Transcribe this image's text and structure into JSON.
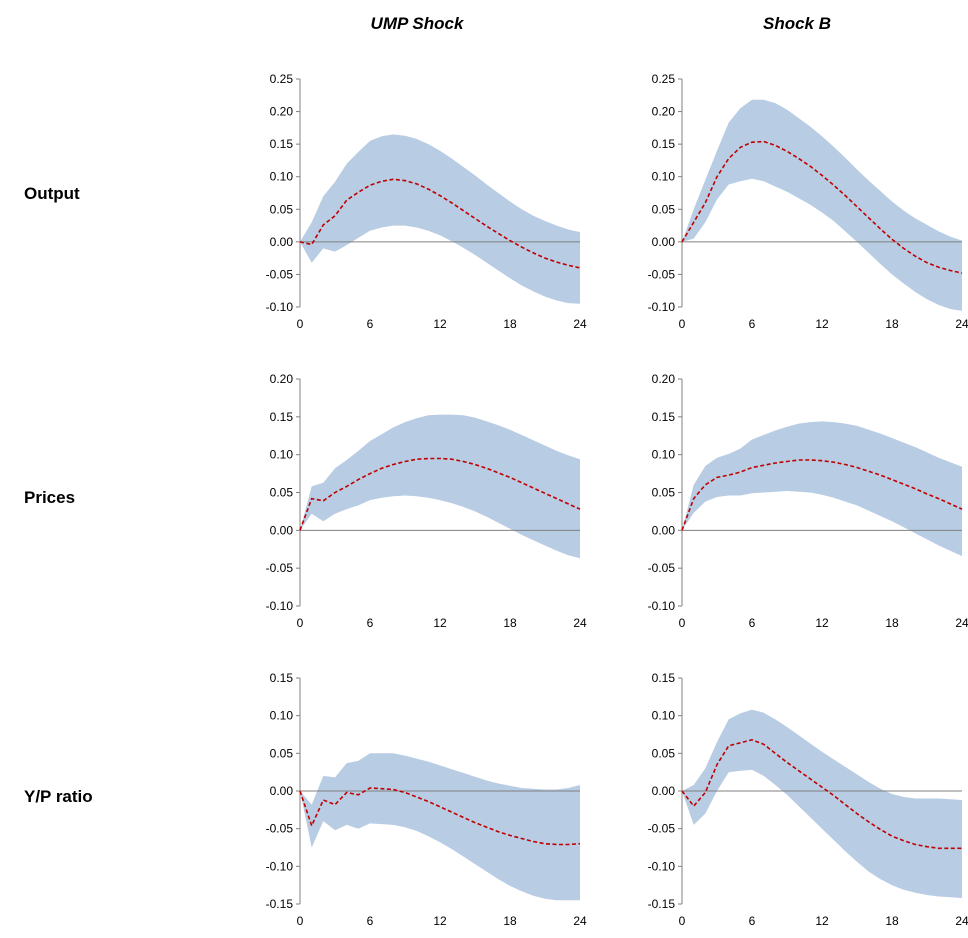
{
  "columns": [
    "UMP Shock",
    "Shock B"
  ],
  "rows": [
    "Output",
    "Prices",
    "Y/P ratio"
  ],
  "colors": {
    "band": "#b8cce4",
    "median": "#c00000",
    "axis": "#808080"
  },
  "chart_data": [
    {
      "type": "area",
      "row": "Output",
      "column": "UMP Shock",
      "ylim": [
        -0.1,
        0.25
      ],
      "yticks": [
        -0.1,
        -0.05,
        0.0,
        0.05,
        0.1,
        0.15,
        0.2,
        0.25
      ],
      "xlim": [
        0,
        24
      ],
      "xticks": [
        0,
        6,
        12,
        18,
        24
      ],
      "x": [
        0,
        1,
        2,
        3,
        4,
        5,
        6,
        7,
        8,
        9,
        10,
        11,
        12,
        13,
        14,
        15,
        16,
        17,
        18,
        19,
        20,
        21,
        22,
        23,
        24
      ],
      "series": [
        {
          "role": "upper",
          "values": [
            0.0,
            0.03,
            0.07,
            0.092,
            0.12,
            0.138,
            0.155,
            0.162,
            0.165,
            0.163,
            0.158,
            0.15,
            0.14,
            0.128,
            0.115,
            0.102,
            0.088,
            0.075,
            0.062,
            0.05,
            0.04,
            0.032,
            0.025,
            0.019,
            0.015
          ]
        },
        {
          "role": "median",
          "values": [
            0.0,
            -0.004,
            0.026,
            0.04,
            0.064,
            0.076,
            0.087,
            0.093,
            0.096,
            0.094,
            0.089,
            0.081,
            0.071,
            0.06,
            0.048,
            0.036,
            0.024,
            0.013,
            0.002,
            -0.008,
            -0.017,
            -0.025,
            -0.031,
            -0.036,
            -0.04
          ]
        },
        {
          "role": "lower",
          "values": [
            0.0,
            -0.032,
            -0.01,
            -0.015,
            -0.005,
            0.006,
            0.017,
            0.022,
            0.025,
            0.025,
            0.022,
            0.017,
            0.01,
            0.001,
            -0.009,
            -0.02,
            -0.032,
            -0.044,
            -0.056,
            -0.067,
            -0.076,
            -0.084,
            -0.09,
            -0.094,
            -0.095
          ]
        }
      ]
    },
    {
      "type": "area",
      "row": "Output",
      "column": "Shock B",
      "ylim": [
        -0.1,
        0.25
      ],
      "yticks": [
        -0.1,
        -0.05,
        0.0,
        0.05,
        0.1,
        0.15,
        0.2,
        0.25
      ],
      "xlim": [
        0,
        24
      ],
      "xticks": [
        0,
        6,
        12,
        18,
        24
      ],
      "x": [
        0,
        1,
        2,
        3,
        4,
        5,
        6,
        7,
        8,
        9,
        10,
        11,
        12,
        13,
        14,
        15,
        16,
        17,
        18,
        19,
        20,
        21,
        22,
        23,
        24
      ],
      "series": [
        {
          "role": "upper",
          "values": [
            0.0,
            0.05,
            0.095,
            0.14,
            0.183,
            0.205,
            0.218,
            0.218,
            0.213,
            0.203,
            0.19,
            0.177,
            0.162,
            0.146,
            0.129,
            0.111,
            0.094,
            0.078,
            0.062,
            0.048,
            0.036,
            0.026,
            0.016,
            0.008,
            0.002
          ]
        },
        {
          "role": "median",
          "values": [
            0.0,
            0.03,
            0.06,
            0.1,
            0.128,
            0.145,
            0.153,
            0.154,
            0.148,
            0.139,
            0.128,
            0.116,
            0.102,
            0.087,
            0.071,
            0.054,
            0.037,
            0.02,
            0.004,
            -0.01,
            -0.022,
            -0.032,
            -0.039,
            -0.044,
            -0.048
          ]
        },
        {
          "role": "lower",
          "values": [
            0.0,
            0.005,
            0.03,
            0.065,
            0.088,
            0.093,
            0.097,
            0.093,
            0.085,
            0.077,
            0.067,
            0.057,
            0.045,
            0.032,
            0.016,
            0.0,
            -0.017,
            -0.034,
            -0.05,
            -0.064,
            -0.077,
            -0.088,
            -0.097,
            -0.103,
            -0.106
          ]
        }
      ]
    },
    {
      "type": "area",
      "row": "Prices",
      "column": "UMP Shock",
      "ylim": [
        -0.1,
        0.2
      ],
      "yticks": [
        -0.1,
        -0.05,
        0.0,
        0.05,
        0.1,
        0.15,
        0.2
      ],
      "xlim": [
        0,
        24
      ],
      "xticks": [
        0,
        6,
        12,
        18,
        24
      ],
      "x": [
        0,
        1,
        2,
        3,
        4,
        5,
        6,
        7,
        8,
        9,
        10,
        11,
        12,
        13,
        14,
        15,
        16,
        17,
        18,
        19,
        20,
        21,
        22,
        23,
        24
      ],
      "series": [
        {
          "role": "upper",
          "values": [
            0.0,
            0.058,
            0.063,
            0.082,
            0.093,
            0.105,
            0.118,
            0.127,
            0.136,
            0.143,
            0.148,
            0.152,
            0.153,
            0.153,
            0.152,
            0.149,
            0.144,
            0.139,
            0.133,
            0.126,
            0.119,
            0.112,
            0.105,
            0.099,
            0.094
          ]
        },
        {
          "role": "median",
          "values": [
            0.0,
            0.042,
            0.039,
            0.05,
            0.058,
            0.067,
            0.075,
            0.082,
            0.087,
            0.091,
            0.094,
            0.095,
            0.095,
            0.094,
            0.091,
            0.087,
            0.082,
            0.076,
            0.07,
            0.063,
            0.056,
            0.049,
            0.042,
            0.035,
            0.028
          ]
        },
        {
          "role": "lower",
          "values": [
            0.0,
            0.022,
            0.012,
            0.022,
            0.028,
            0.033,
            0.04,
            0.043,
            0.045,
            0.046,
            0.045,
            0.043,
            0.04,
            0.036,
            0.031,
            0.025,
            0.018,
            0.01,
            0.002,
            -0.006,
            -0.013,
            -0.02,
            -0.027,
            -0.033,
            -0.037
          ]
        }
      ]
    },
    {
      "type": "area",
      "row": "Prices",
      "column": "Shock B",
      "ylim": [
        -0.1,
        0.2
      ],
      "yticks": [
        -0.1,
        -0.05,
        0.0,
        0.05,
        0.1,
        0.15,
        0.2
      ],
      "xlim": [
        0,
        24
      ],
      "xticks": [
        0,
        6,
        12,
        18,
        24
      ],
      "x": [
        0,
        1,
        2,
        3,
        4,
        5,
        6,
        7,
        8,
        9,
        10,
        11,
        12,
        13,
        14,
        15,
        16,
        17,
        18,
        19,
        20,
        21,
        22,
        23,
        24
      ],
      "series": [
        {
          "role": "upper",
          "values": [
            0.0,
            0.06,
            0.085,
            0.096,
            0.101,
            0.108,
            0.12,
            0.126,
            0.132,
            0.137,
            0.141,
            0.143,
            0.144,
            0.143,
            0.141,
            0.138,
            0.133,
            0.128,
            0.122,
            0.116,
            0.11,
            0.103,
            0.096,
            0.09,
            0.084
          ]
        },
        {
          "role": "median",
          "values": [
            0.0,
            0.042,
            0.06,
            0.07,
            0.073,
            0.077,
            0.083,
            0.086,
            0.089,
            0.091,
            0.093,
            0.093,
            0.092,
            0.09,
            0.087,
            0.083,
            0.078,
            0.073,
            0.067,
            0.061,
            0.055,
            0.048,
            0.042,
            0.035,
            0.028
          ]
        },
        {
          "role": "lower",
          "values": [
            0.0,
            0.023,
            0.038,
            0.044,
            0.046,
            0.046,
            0.049,
            0.05,
            0.051,
            0.052,
            0.051,
            0.05,
            0.047,
            0.043,
            0.038,
            0.033,
            0.026,
            0.019,
            0.012,
            0.004,
            -0.004,
            -0.012,
            -0.02,
            -0.027,
            -0.034
          ]
        }
      ]
    },
    {
      "type": "area",
      "row": "Y/P ratio",
      "column": "UMP Shock",
      "ylim": [
        -0.15,
        0.15
      ],
      "yticks": [
        -0.15,
        -0.1,
        -0.05,
        0.0,
        0.05,
        0.1,
        0.15
      ],
      "xlim": [
        0,
        24
      ],
      "xticks": [
        0,
        6,
        12,
        18,
        24
      ],
      "x": [
        0,
        1,
        2,
        3,
        4,
        5,
        6,
        7,
        8,
        9,
        10,
        11,
        12,
        13,
        14,
        15,
        16,
        17,
        18,
        19,
        20,
        21,
        22,
        23,
        24
      ],
      "series": [
        {
          "role": "upper",
          "values": [
            0.0,
            -0.018,
            0.02,
            0.018,
            0.037,
            0.04,
            0.05,
            0.05,
            0.05,
            0.047,
            0.043,
            0.039,
            0.034,
            0.029,
            0.024,
            0.019,
            0.014,
            0.01,
            0.007,
            0.004,
            0.003,
            0.002,
            0.002,
            0.004,
            0.008
          ]
        },
        {
          "role": "median",
          "values": [
            0.0,
            -0.046,
            -0.012,
            -0.018,
            -0.002,
            -0.005,
            0.004,
            0.003,
            0.002,
            -0.002,
            -0.008,
            -0.014,
            -0.021,
            -0.028,
            -0.035,
            -0.042,
            -0.048,
            -0.054,
            -0.059,
            -0.063,
            -0.067,
            -0.07,
            -0.071,
            -0.071,
            -0.07
          ]
        },
        {
          "role": "lower",
          "values": [
            0.0,
            -0.075,
            -0.04,
            -0.052,
            -0.045,
            -0.05,
            -0.043,
            -0.044,
            -0.045,
            -0.048,
            -0.053,
            -0.06,
            -0.068,
            -0.077,
            -0.087,
            -0.097,
            -0.107,
            -0.117,
            -0.126,
            -0.133,
            -0.139,
            -0.143,
            -0.145,
            -0.145,
            -0.145
          ]
        }
      ]
    },
    {
      "type": "area",
      "row": "Y/P ratio",
      "column": "Shock B",
      "ylim": [
        -0.15,
        0.15
      ],
      "yticks": [
        -0.15,
        -0.1,
        -0.05,
        0.0,
        0.05,
        0.1,
        0.15
      ],
      "xlim": [
        0,
        24
      ],
      "xticks": [
        0,
        6,
        12,
        18,
        24
      ],
      "x": [
        0,
        1,
        2,
        3,
        4,
        5,
        6,
        7,
        8,
        9,
        10,
        11,
        12,
        13,
        14,
        15,
        16,
        17,
        18,
        19,
        20,
        21,
        22,
        23,
        24
      ],
      "series": [
        {
          "role": "upper",
          "values": [
            0.0,
            0.008,
            0.03,
            0.065,
            0.095,
            0.103,
            0.108,
            0.104,
            0.095,
            0.085,
            0.074,
            0.063,
            0.052,
            0.042,
            0.032,
            0.022,
            0.012,
            0.003,
            -0.004,
            -0.008,
            -0.01,
            -0.01,
            -0.01,
            -0.011,
            -0.012
          ]
        },
        {
          "role": "median",
          "values": [
            0.0,
            -0.02,
            -0.002,
            0.035,
            0.06,
            0.064,
            0.068,
            0.062,
            0.05,
            0.038,
            0.027,
            0.016,
            0.005,
            -0.006,
            -0.018,
            -0.03,
            -0.041,
            -0.051,
            -0.06,
            -0.066,
            -0.071,
            -0.074,
            -0.076,
            -0.076,
            -0.076
          ]
        },
        {
          "role": "lower",
          "values": [
            0.0,
            -0.045,
            -0.03,
            0.0,
            0.025,
            0.027,
            0.028,
            0.02,
            0.008,
            -0.005,
            -0.02,
            -0.035,
            -0.05,
            -0.065,
            -0.08,
            -0.094,
            -0.107,
            -0.117,
            -0.125,
            -0.131,
            -0.135,
            -0.138,
            -0.14,
            -0.141,
            -0.142
          ]
        }
      ]
    }
  ]
}
